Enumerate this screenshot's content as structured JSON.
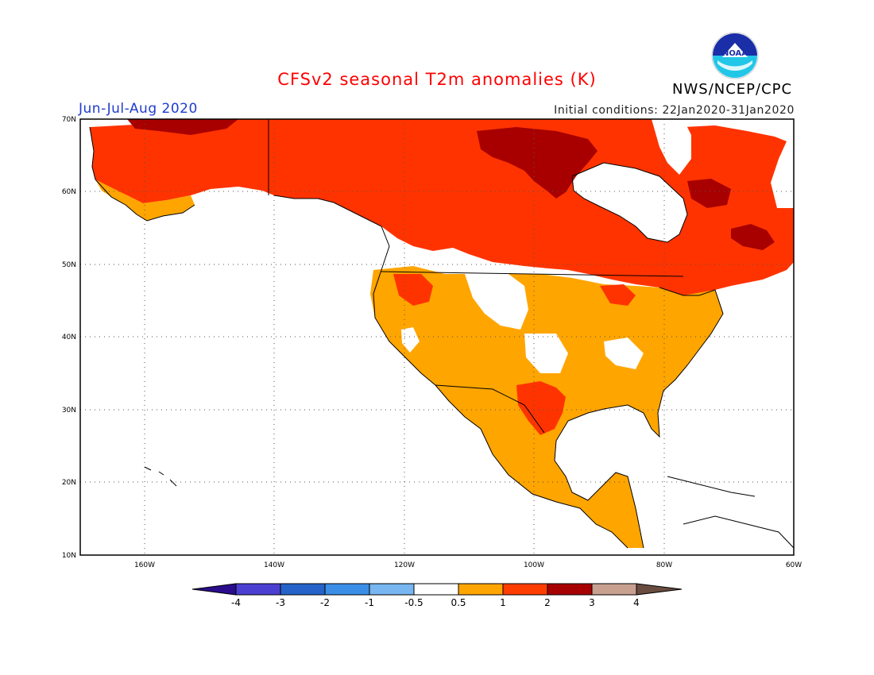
{
  "header": {
    "title": "CFSv2 seasonal T2m anomalies (K)",
    "season": "Jun-Jul-Aug 2020",
    "initial_conditions": "Initial conditions: 22Jan2020-31Jan2020",
    "agency": "NWS/NCEP/CPC",
    "logo_text": "NOAA"
  },
  "map": {
    "lat_labels": [
      "70N",
      "60N",
      "50N",
      "40N",
      "30N",
      "20N",
      "10N"
    ],
    "lon_labels": [
      "160W",
      "140W",
      "120W",
      "100W",
      "80W",
      "60W"
    ],
    "lat_range": [
      10,
      70
    ],
    "lon_range": [
      -170,
      -60
    ]
  },
  "colorbar": {
    "labels": [
      "-4",
      "-3",
      "-2",
      "-1",
      "-0.5",
      "0.5",
      "1",
      "2",
      "3",
      "4"
    ],
    "colors": [
      "#2a0c8c",
      "#4b3fd1",
      "#2563c9",
      "#3a8ee6",
      "#77b6f0",
      "#ffffff",
      "#ffa500",
      "#ff3d00",
      "#a70000",
      "#c8a090",
      "#6a4c40"
    ]
  },
  "colors": {
    "ocean": "#ffffff",
    "land_anomaly_0_5_to_1": "#ffa500",
    "land_anomaly_1_to_2": "#ff3300",
    "land_anomaly_2_to_3": "#a80000",
    "title": "#ff0000",
    "season": "#1e3ccf"
  }
}
